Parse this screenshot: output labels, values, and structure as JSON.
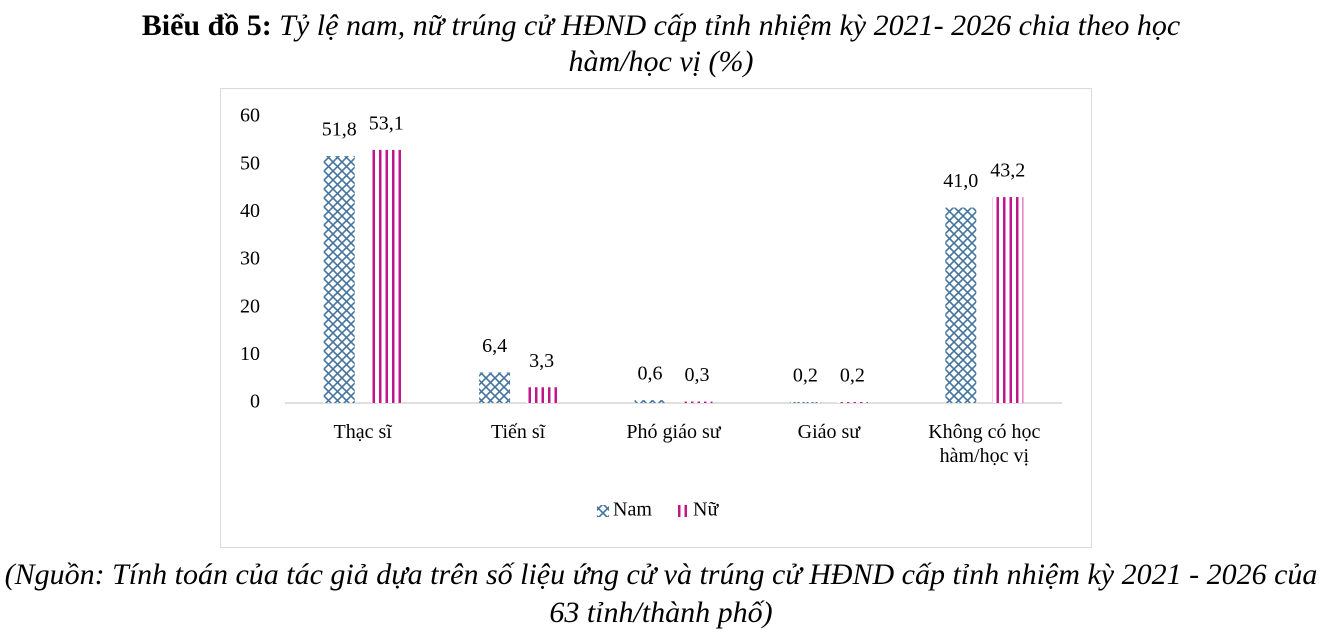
{
  "chart_data": {
    "type": "bar",
    "figure_label": "Biểu đồ 5:",
    "title": "Tỷ lệ nam, nữ trúng cử HĐND cấp tỉnh nhiệm kỳ 2021- 2026 chia theo học hàm/học vị (%)",
    "source": "(Nguồn: Tính toán của tác giả dựa trên số liệu ứng cử và trúng cử HĐND cấp tỉnh nhiệm kỳ 2021 - 2026 của 63 tỉnh/thành phố)",
    "categories": [
      "Thạc sĩ",
      "Tiến sĩ",
      "Phó giáo sư",
      "Giáo sư",
      "Không có học hàm/học vị"
    ],
    "series": [
      {
        "name": "Nam",
        "color": "#44749f",
        "pattern": "crosshatch",
        "values": [
          51.8,
          6.4,
          0.6,
          0.2,
          41.0
        ],
        "value_labels": [
          "51,8",
          "6,4",
          "0,6",
          "0,2",
          "41,0"
        ]
      },
      {
        "name": "Nữ",
        "color": "#c0168c",
        "pattern": "vertical-stripes",
        "values": [
          53.1,
          3.3,
          0.3,
          0.2,
          43.2
        ],
        "value_labels": [
          "53,1",
          "3,3",
          "0,3",
          "0,2",
          "43,2"
        ]
      }
    ],
    "ylim": [
      0,
      60
    ],
    "yticks": [
      0,
      10,
      20,
      30,
      40,
      50,
      60
    ],
    "grid": false,
    "legend": "bottom"
  }
}
